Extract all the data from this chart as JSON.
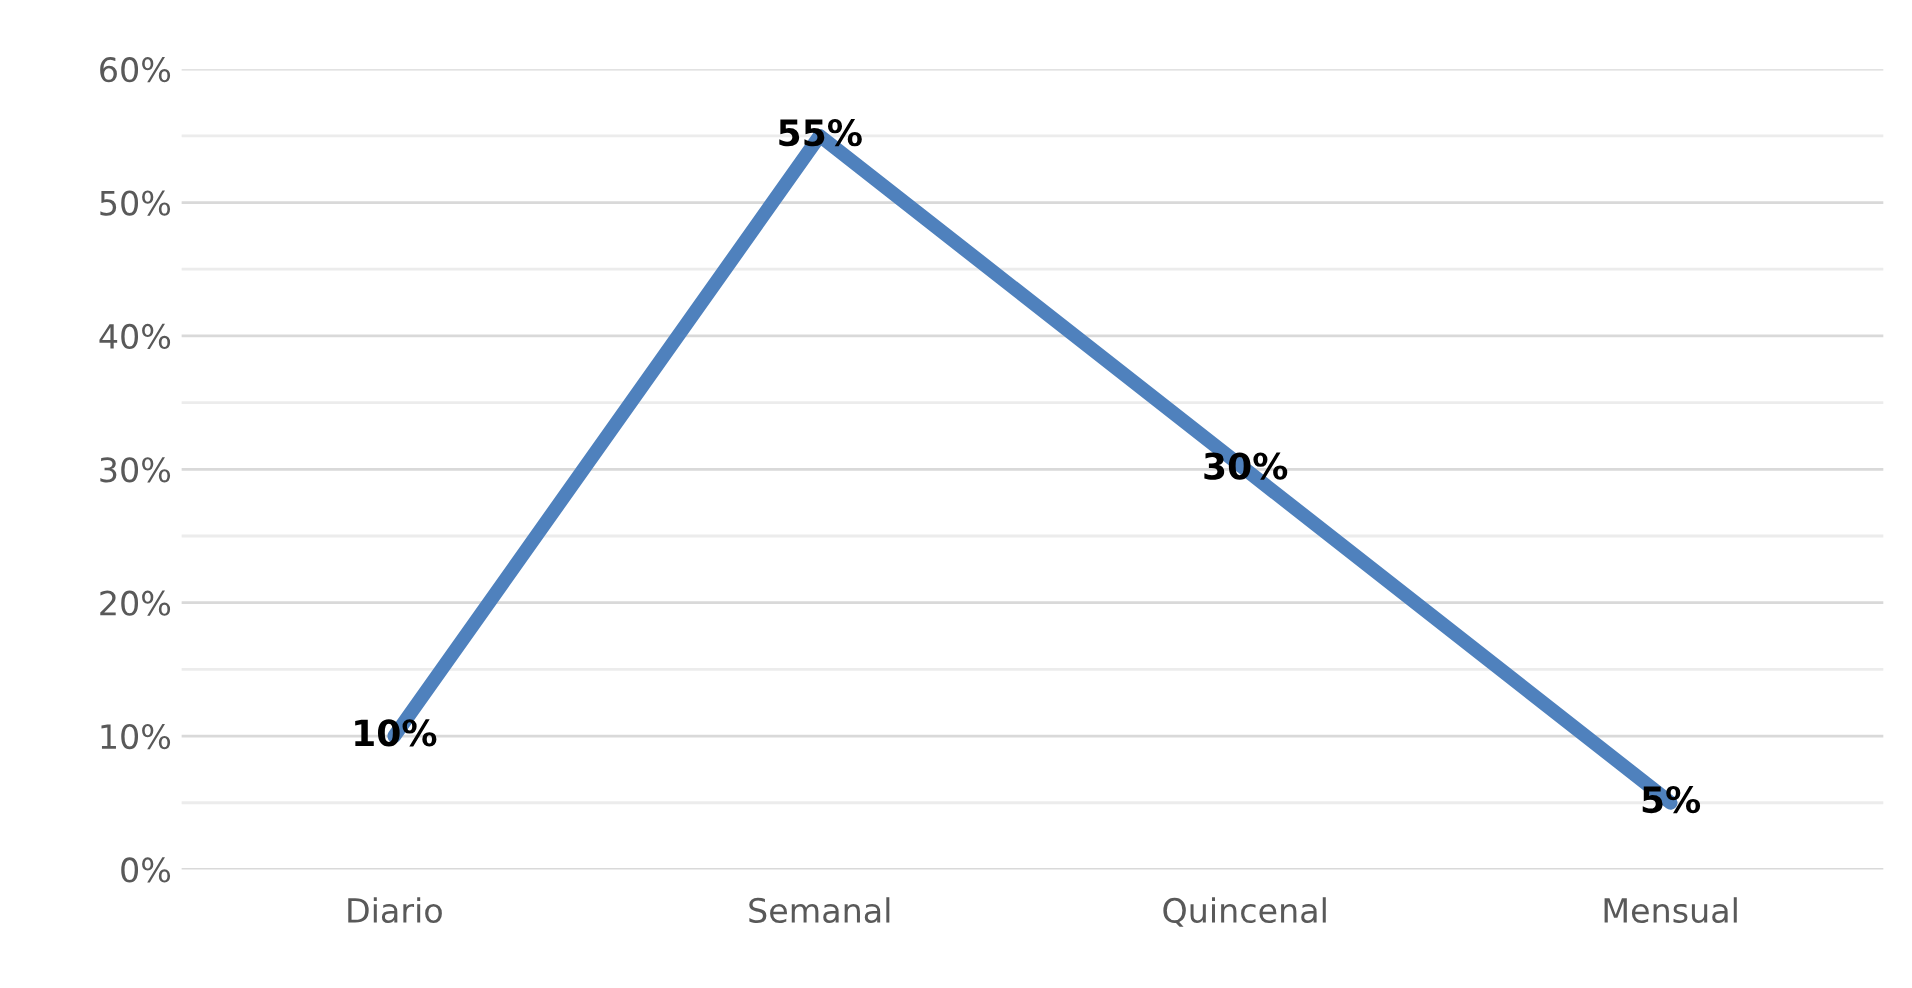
{
  "chart_data": {
    "type": "line",
    "categories": [
      "Diario",
      "Semanal",
      "Quincenal",
      "Mensual"
    ],
    "series": [
      {
        "color": "#4f81bd",
        "values": [
          10,
          55,
          30,
          5
        ],
        "value_labels": [
          "10%",
          "55%",
          "30%",
          "5%"
        ]
      }
    ],
    "ylim": [
      0,
      60
    ],
    "yticks": [
      {
        "value": 0,
        "label": "0%"
      },
      {
        "value": 5,
        "label": null
      },
      {
        "value": 10,
        "label": "10%"
      },
      {
        "value": 15,
        "label": null
      },
      {
        "value": 20,
        "label": "20%"
      },
      {
        "value": 25,
        "label": null
      },
      {
        "value": 30,
        "label": "30%"
      },
      {
        "value": 35,
        "label": null
      },
      {
        "value": 40,
        "label": "40%"
      },
      {
        "value": 45,
        "label": null
      },
      {
        "value": 50,
        "label": "50%"
      },
      {
        "value": 55,
        "label": null
      },
      {
        "value": 60,
        "label": "60%"
      }
    ],
    "grid": "y",
    "marker": "none",
    "line_style": "solid"
  }
}
